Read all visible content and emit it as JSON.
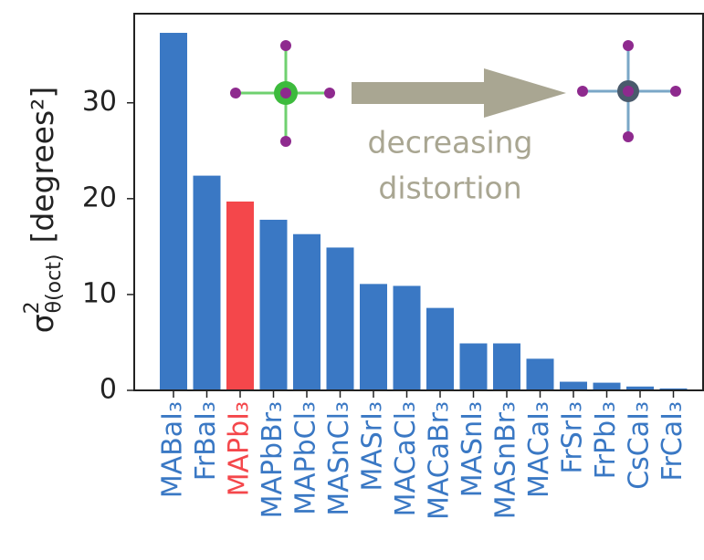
{
  "chart_data": {
    "type": "bar",
    "ylabel": {
      "symbol": "σ",
      "sup": "2",
      "sub": "θ(oct)",
      "unit": "[degrees²]"
    },
    "annotation": [
      "decreasing",
      "distortion"
    ],
    "categories": [
      "MABaI₃",
      "FrBaI₃",
      "MAPbI₃",
      "MAPbBr₃",
      "MAPbCl₃",
      "MASnCl₃",
      "MASrI₃",
      "MACaCl₃",
      "MACaBr₃",
      "MASnI₃",
      "MASnBr₃",
      "MACaI₃",
      "FrSrI₃",
      "FrPbI₃",
      "CsCaI₃",
      "FrCaI₃"
    ],
    "values": [
      37.3,
      22.4,
      19.7,
      17.8,
      16.3,
      14.9,
      11.1,
      10.9,
      8.6,
      4.9,
      4.9,
      3.3,
      0.9,
      0.8,
      0.4,
      0.2
    ],
    "colors": [
      "#3a78c4",
      "#3a78c4",
      "#f4474b",
      "#3a78c4",
      "#3a78c4",
      "#3a78c4",
      "#3a78c4",
      "#3a78c4",
      "#3a78c4",
      "#3a78c4",
      "#3a78c4",
      "#3a78c4",
      "#3a78c4",
      "#3a78c4",
      "#3a78c4",
      "#3a78c4"
    ],
    "ylim": [
      0,
      39.3
    ],
    "yticks": [
      0,
      10,
      20,
      30
    ],
    "grid": false
  }
}
